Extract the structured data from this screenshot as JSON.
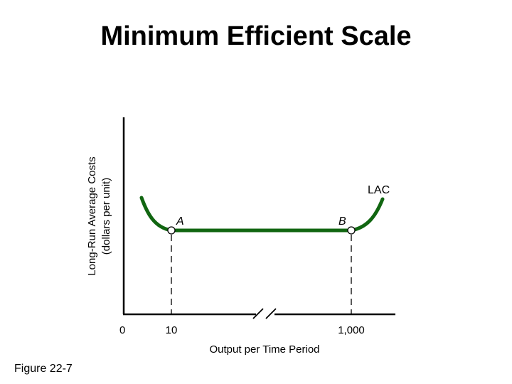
{
  "slide": {
    "title": "Minimum Efficient Scale",
    "figure_label": "Figure 22-7"
  },
  "chart_data": {
    "type": "line",
    "title": "Minimum Efficient Scale",
    "xlabel": "Output per Time Period",
    "ylabel_line1": "Long-Run Average Costs",
    "ylabel_line2": "(dollars per unit)",
    "origin_label": "0",
    "x_ticks": [
      {
        "value": 10,
        "label": "10"
      },
      {
        "value": 1000,
        "label": "1,000"
      }
    ],
    "axis_break": true,
    "series": [
      {
        "name": "LAC",
        "color": "#116611",
        "shape": "U-shaped with flat bottom between A and B"
      }
    ],
    "points": [
      {
        "label": "A",
        "x": 10
      },
      {
        "label": "B",
        "x": 1000
      }
    ],
    "reference_lines": "dashed vertical lines from A and B to the x-axis",
    "grid": false
  }
}
